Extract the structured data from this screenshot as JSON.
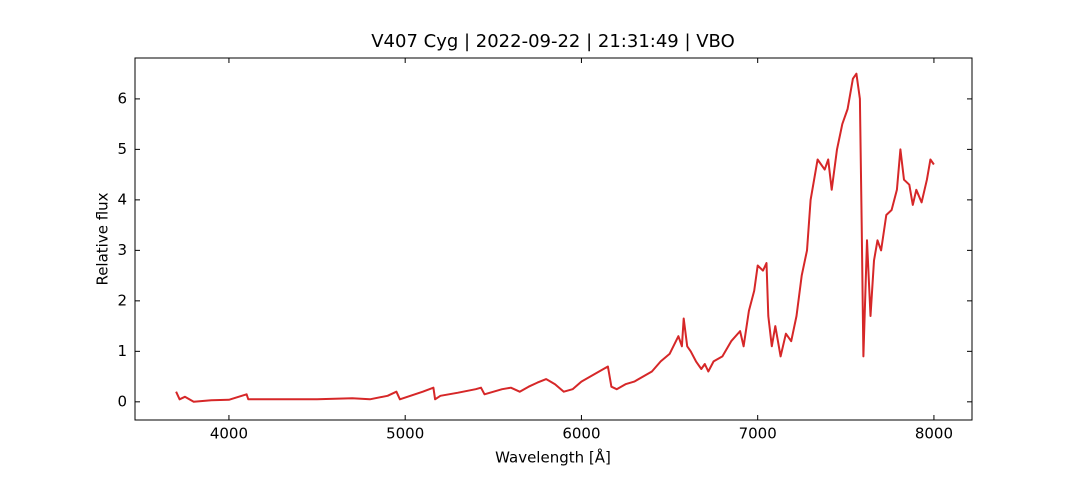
{
  "chart_data": {
    "type": "line",
    "title": "V407 Cyg | 2022-09-22 | 21:31:49 | VBO",
    "x_label": "Wavelength [Å]",
    "y_label": "Relative flux",
    "xlim": [
      3467,
      8216
    ],
    "ylim": [
      -0.36,
      6.81
    ],
    "xticks": [
      4000,
      5000,
      6000,
      7000,
      8000
    ],
    "yticks": [
      0,
      1,
      2,
      3,
      4,
      5,
      6
    ],
    "x": [
      3700,
      3720,
      3750,
      3800,
      3900,
      4000,
      4100,
      4110,
      4300,
      4500,
      4700,
      4800,
      4900,
      4950,
      4970,
      5100,
      5160,
      5170,
      5200,
      5300,
      5400,
      5430,
      5450,
      5550,
      5600,
      5650,
      5700,
      5750,
      5800,
      5850,
      5900,
      5950,
      6000,
      6100,
      6150,
      6170,
      6200,
      6250,
      6300,
      6400,
      6450,
      6500,
      6550,
      6570,
      6580,
      6600,
      6620,
      6650,
      6680,
      6700,
      6720,
      6750,
      6800,
      6850,
      6900,
      6920,
      6950,
      6980,
      7000,
      7030,
      7050,
      7060,
      7080,
      7100,
      7130,
      7160,
      7190,
      7220,
      7250,
      7280,
      7300,
      7320,
      7340,
      7380,
      7400,
      7420,
      7450,
      7480,
      7510,
      7540,
      7560,
      7580,
      7590,
      7600,
      7620,
      7640,
      7660,
      7680,
      7700,
      7730,
      7760,
      7790,
      7810,
      7830,
      7860,
      7880,
      7900,
      7930,
      7960,
      7980,
      8000
    ],
    "series": [
      {
        "name": "V407 Cyg",
        "color": "#d62728",
        "values": [
          0.2,
          0.05,
          0.1,
          0.0,
          0.03,
          0.04,
          0.15,
          0.05,
          0.05,
          0.05,
          0.07,
          0.05,
          0.12,
          0.2,
          0.05,
          0.2,
          0.28,
          0.05,
          0.12,
          0.18,
          0.25,
          0.28,
          0.15,
          0.25,
          0.28,
          0.2,
          0.3,
          0.38,
          0.45,
          0.35,
          0.2,
          0.25,
          0.4,
          0.6,
          0.7,
          0.3,
          0.25,
          0.35,
          0.4,
          0.6,
          0.8,
          0.95,
          1.3,
          1.1,
          1.65,
          1.1,
          1.0,
          0.8,
          0.65,
          0.75,
          0.6,
          0.8,
          0.9,
          1.2,
          1.4,
          1.1,
          1.8,
          2.2,
          2.7,
          2.6,
          2.75,
          1.7,
          1.1,
          1.5,
          0.9,
          1.35,
          1.2,
          1.7,
          2.5,
          3.0,
          4.0,
          4.4,
          4.8,
          4.6,
          4.8,
          4.2,
          5.0,
          5.5,
          5.8,
          6.4,
          6.5,
          6.0,
          3.5,
          0.9,
          3.2,
          1.7,
          2.8,
          3.2,
          3.0,
          3.7,
          3.8,
          4.2,
          5.0,
          4.4,
          4.3,
          3.9,
          4.2,
          3.95,
          4.4,
          4.8,
          4.7
        ]
      }
    ]
  }
}
